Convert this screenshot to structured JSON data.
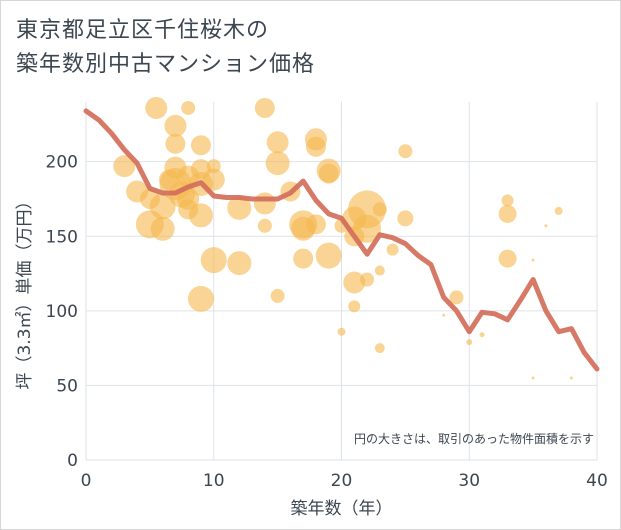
{
  "chart_data": {
    "type": "scatter",
    "title": [
      "東京都足立区千住桜木の",
      "築年数別中古マンション価格"
    ],
    "xlabel": "築年数（年）",
    "ylabel": "坪（3.3㎡）単価（万円）",
    "xlim": [
      0,
      40
    ],
    "ylim": [
      0,
      240
    ],
    "xticks": [
      0,
      10,
      20,
      30,
      40
    ],
    "yticks": [
      0,
      50,
      100,
      150,
      200
    ],
    "grid": true,
    "note": "円の大きさは、取引のあった物件面積を示す",
    "colors": {
      "bubble": "#f5b84e",
      "line": "#d26e5a",
      "grid": "#dde3e8"
    },
    "series": [
      {
        "kind": "bubble",
        "points": [
          {
            "x": 3,
            "y": 197,
            "s": 11
          },
          {
            "x": 4,
            "y": 180,
            "s": 11
          },
          {
            "x": 5,
            "y": 175,
            "s": 10
          },
          {
            "x": 5,
            "y": 158,
            "s": 14
          },
          {
            "x": 5.5,
            "y": 236,
            "s": 11
          },
          {
            "x": 6,
            "y": 170,
            "s": 13
          },
          {
            "x": 6,
            "y": 155,
            "s": 12
          },
          {
            "x": 6.5,
            "y": 188,
            "s": 10
          },
          {
            "x": 7,
            "y": 224,
            "s": 11
          },
          {
            "x": 7,
            "y": 212,
            "s": 10
          },
          {
            "x": 7,
            "y": 196,
            "s": 11
          },
          {
            "x": 7,
            "y": 185,
            "s": 16
          },
          {
            "x": 7.5,
            "y": 178,
            "s": 13
          },
          {
            "x": 8,
            "y": 236,
            "s": 7
          },
          {
            "x": 8,
            "y": 190,
            "s": 11
          },
          {
            "x": 8,
            "y": 175,
            "s": 11
          },
          {
            "x": 8,
            "y": 168,
            "s": 10
          },
          {
            "x": 9,
            "y": 211,
            "s": 10
          },
          {
            "x": 9,
            "y": 195,
            "s": 10
          },
          {
            "x": 9,
            "y": 185,
            "s": 12
          },
          {
            "x": 9,
            "y": 164,
            "s": 12
          },
          {
            "x": 9,
            "y": 108,
            "s": 13
          },
          {
            "x": 10,
            "y": 197,
            "s": 7
          },
          {
            "x": 10,
            "y": 188,
            "s": 11
          },
          {
            "x": 10,
            "y": 134,
            "s": 13
          },
          {
            "x": 12,
            "y": 169,
            "s": 12
          },
          {
            "x": 12,
            "y": 132,
            "s": 12
          },
          {
            "x": 14,
            "y": 236,
            "s": 10
          },
          {
            "x": 14,
            "y": 172,
            "s": 11
          },
          {
            "x": 14,
            "y": 157,
            "s": 7
          },
          {
            "x": 15,
            "y": 213,
            "s": 11
          },
          {
            "x": 15,
            "y": 199,
            "s": 12
          },
          {
            "x": 15,
            "y": 110,
            "s": 7
          },
          {
            "x": 16,
            "y": 180,
            "s": 10
          },
          {
            "x": 17,
            "y": 158,
            "s": 14
          },
          {
            "x": 17,
            "y": 155,
            "s": 12
          },
          {
            "x": 17,
            "y": 135,
            "s": 10
          },
          {
            "x": 18,
            "y": 215,
            "s": 11
          },
          {
            "x": 18,
            "y": 210,
            "s": 10
          },
          {
            "x": 18,
            "y": 158,
            "s": 10
          },
          {
            "x": 19,
            "y": 194,
            "s": 12
          },
          {
            "x": 19,
            "y": 192,
            "s": 10
          },
          {
            "x": 19,
            "y": 137,
            "s": 13
          },
          {
            "x": 20,
            "y": 157,
            "s": 7
          },
          {
            "x": 20,
            "y": 86,
            "s": 4
          },
          {
            "x": 21,
            "y": 162,
            "s": 12
          },
          {
            "x": 21,
            "y": 150,
            "s": 10
          },
          {
            "x": 21,
            "y": 119,
            "s": 11
          },
          {
            "x": 21,
            "y": 103,
            "s": 6
          },
          {
            "x": 22,
            "y": 168,
            "s": 19
          },
          {
            "x": 22,
            "y": 155,
            "s": 14
          },
          {
            "x": 22,
            "y": 121,
            "s": 7
          },
          {
            "x": 23,
            "y": 168,
            "s": 7
          },
          {
            "x": 23,
            "y": 127,
            "s": 5
          },
          {
            "x": 23,
            "y": 75,
            "s": 5
          },
          {
            "x": 24,
            "y": 141,
            "s": 6
          },
          {
            "x": 25,
            "y": 207,
            "s": 7
          },
          {
            "x": 25,
            "y": 162,
            "s": 8
          },
          {
            "x": 28,
            "y": 97,
            "s": 1.5
          },
          {
            "x": 29,
            "y": 109,
            "s": 7
          },
          {
            "x": 30,
            "y": 79,
            "s": 3
          },
          {
            "x": 31,
            "y": 84,
            "s": 2.5
          },
          {
            "x": 33,
            "y": 174,
            "s": 6
          },
          {
            "x": 33,
            "y": 165,
            "s": 9
          },
          {
            "x": 33,
            "y": 135,
            "s": 9
          },
          {
            "x": 35,
            "y": 134,
            "s": 1.5
          },
          {
            "x": 35,
            "y": 55,
            "s": 1.5
          },
          {
            "x": 36,
            "y": 157,
            "s": 1.5
          },
          {
            "x": 37,
            "y": 167,
            "s": 4
          },
          {
            "x": 38,
            "y": 55,
            "s": 1.5
          }
        ]
      },
      {
        "kind": "line",
        "points": [
          {
            "x": 0,
            "y": 234
          },
          {
            "x": 1,
            "y": 228
          },
          {
            "x": 2,
            "y": 219
          },
          {
            "x": 3,
            "y": 208
          },
          {
            "x": 4,
            "y": 199
          },
          {
            "x": 5,
            "y": 182
          },
          {
            "x": 6,
            "y": 179
          },
          {
            "x": 7,
            "y": 179
          },
          {
            "x": 8,
            "y": 183
          },
          {
            "x": 9,
            "y": 186
          },
          {
            "x": 10,
            "y": 177
          },
          {
            "x": 11,
            "y": 176
          },
          {
            "x": 12,
            "y": 176
          },
          {
            "x": 13,
            "y": 175
          },
          {
            "x": 14,
            "y": 175
          },
          {
            "x": 15,
            "y": 175
          },
          {
            "x": 16,
            "y": 179
          },
          {
            "x": 17,
            "y": 187
          },
          {
            "x": 18,
            "y": 174
          },
          {
            "x": 19,
            "y": 165
          },
          {
            "x": 20,
            "y": 162
          },
          {
            "x": 21,
            "y": 150
          },
          {
            "x": 22,
            "y": 138
          },
          {
            "x": 23,
            "y": 151
          },
          {
            "x": 24,
            "y": 149
          },
          {
            "x": 25,
            "y": 145
          },
          {
            "x": 26,
            "y": 137
          },
          {
            "x": 27,
            "y": 131
          },
          {
            "x": 28,
            "y": 109
          },
          {
            "x": 29,
            "y": 100
          },
          {
            "x": 30,
            "y": 86
          },
          {
            "x": 31,
            "y": 99
          },
          {
            "x": 32,
            "y": 98
          },
          {
            "x": 33,
            "y": 94
          },
          {
            "x": 34,
            "y": 107
          },
          {
            "x": 35,
            "y": 121
          },
          {
            "x": 36,
            "y": 100
          },
          {
            "x": 37,
            "y": 86
          },
          {
            "x": 38,
            "y": 88
          },
          {
            "x": 39,
            "y": 72
          },
          {
            "x": 40,
            "y": 61
          }
        ]
      }
    ]
  }
}
